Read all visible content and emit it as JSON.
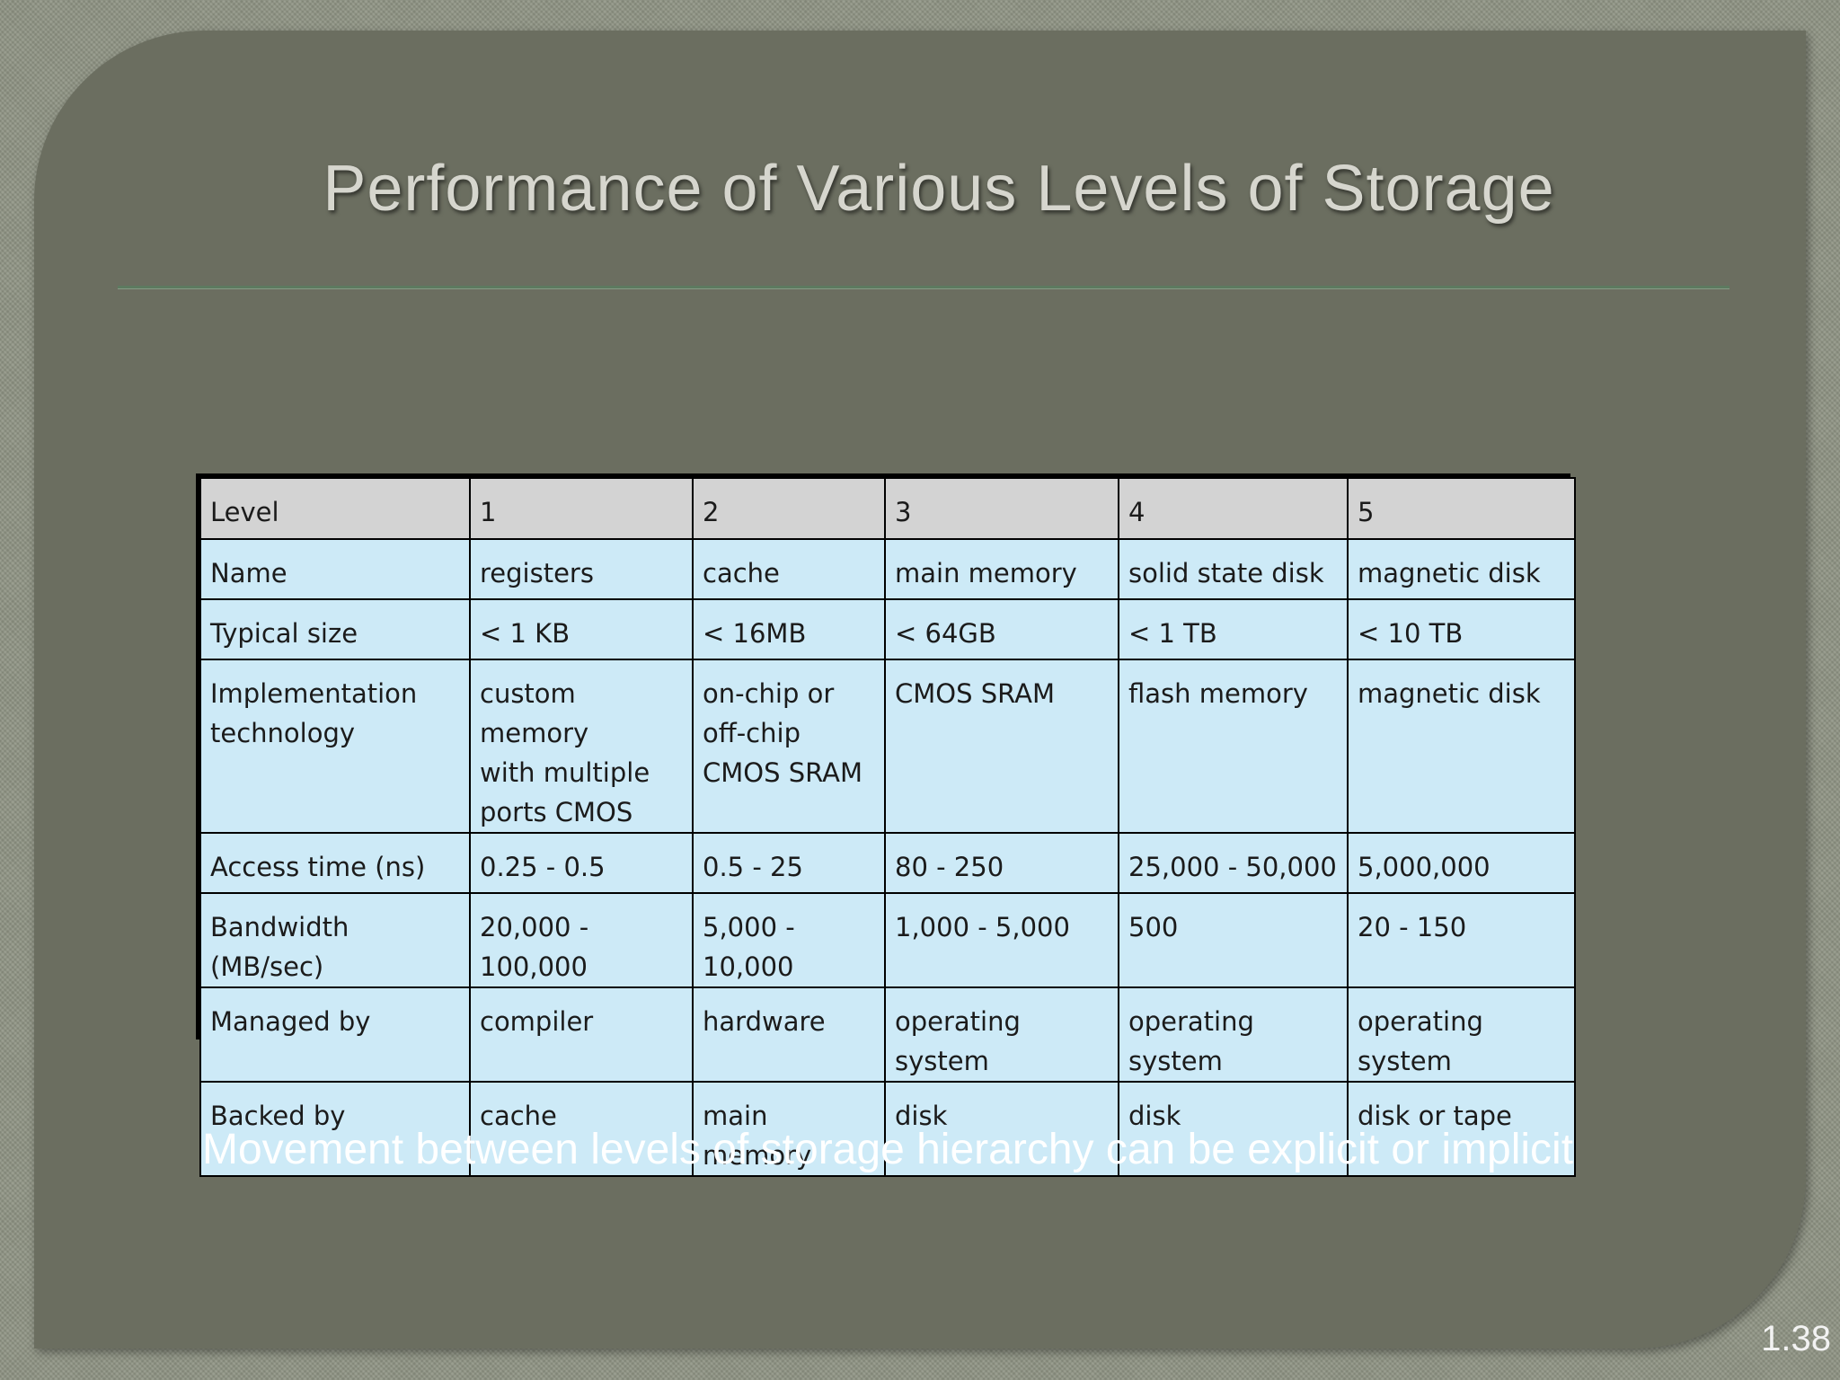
{
  "title": "Performance of Various Levels of Storage",
  "table": {
    "header": [
      "Level",
      "1",
      "2",
      "3",
      "4",
      "5"
    ],
    "rows": [
      [
        "Name",
        "registers",
        "cache",
        "main memory",
        "solid state disk",
        "magnetic disk"
      ],
      [
        "Typical size",
        "< 1 KB",
        "< 16MB",
        "< 64GB",
        "< 1 TB",
        "< 10 TB"
      ],
      [
        "Implementation\ntechnology",
        "custom memory\nwith multiple\nports CMOS",
        "on-chip or\noff-chip\nCMOS SRAM",
        "CMOS SRAM",
        "flash memory",
        "magnetic disk"
      ],
      [
        "Access time (ns)",
        "0.25 - 0.5",
        "0.5 - 25",
        "80 - 250",
        "25,000 - 50,000",
        "5,000,000"
      ],
      [
        "Bandwidth (MB/sec)",
        "20,000 - 100,000",
        "5,000 - 10,000",
        "1,000 - 5,000",
        "500",
        "20 - 150"
      ],
      [
        "Managed by",
        "compiler",
        "hardware",
        "operating system",
        "operating system",
        "operating system"
      ],
      [
        "Backed by",
        "cache",
        "main memory",
        "disk",
        "disk",
        "disk or tape"
      ]
    ]
  },
  "footnote": "Movement between levels of storage hierarchy can be explicit or implicit",
  "slide_number": "1.38",
  "colors": {
    "panel": "#6b6e60",
    "cell": "#cdeaf7",
    "header_cell": "#d3d3d3",
    "title_text": "#d6d6ce"
  }
}
